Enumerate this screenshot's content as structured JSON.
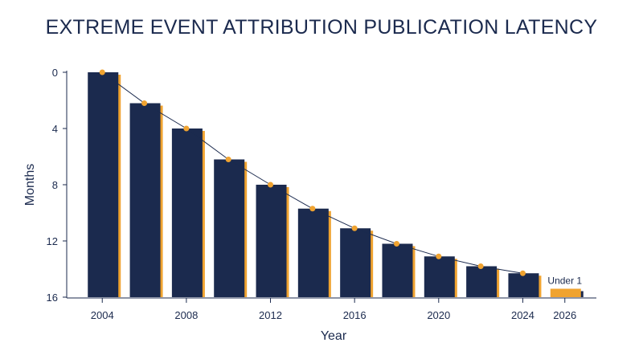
{
  "chart_data": {
    "type": "bar",
    "title": "EXTREME EVENT ATTRIBUTION PUBLICATION LATENCY",
    "xlabel": "Year",
    "ylabel": "Months",
    "y_inverted": true,
    "ylim": [
      0,
      16
    ],
    "y_ticks": [
      0,
      4,
      8,
      12,
      16
    ],
    "xlim": [
      2002.5,
      2027.5
    ],
    "x_ticks": [
      2004,
      2008,
      2012,
      2016,
      2020,
      2024,
      2026
    ],
    "grid": false,
    "legend": "none",
    "x": [
      2004,
      2006,
      2008,
      2010,
      2012,
      2014,
      2016,
      2018,
      2020,
      2022,
      2024,
      2026
    ],
    "values": [
      0.0,
      2.2,
      4.0,
      6.2,
      8.0,
      9.7,
      11.1,
      12.2,
      13.1,
      13.8,
      14.3,
      15.4
    ],
    "trend_line": {
      "x": [
        2004,
        2006,
        2008,
        2010,
        2012,
        2014,
        2016,
        2018,
        2020,
        2022,
        2024
      ],
      "y": [
        0.0,
        2.2,
        4.0,
        6.2,
        8.0,
        9.7,
        11.1,
        12.2,
        13.1,
        13.8,
        14.3
      ]
    },
    "annotations": [
      {
        "x": 2026,
        "text": "Under 1"
      }
    ],
    "colors": {
      "bar": "#1b2a4e",
      "bar_highlight": "#f0a330",
      "accent": "#f0a330",
      "trend": "#1b2a4e",
      "axis": "#1b2a4e"
    }
  }
}
